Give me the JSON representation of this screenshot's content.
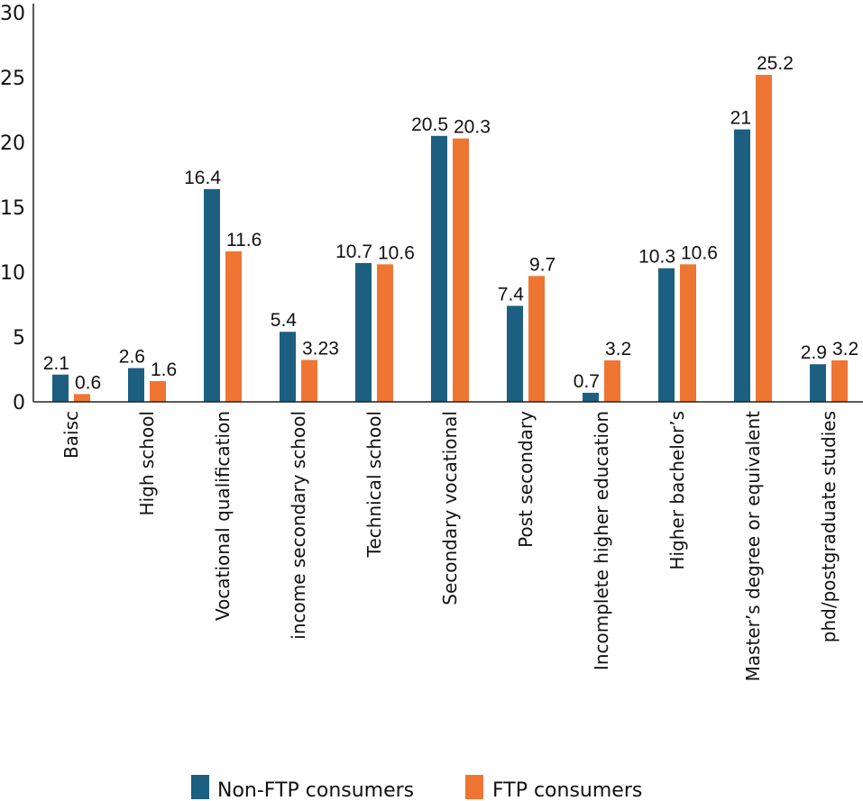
{
  "chart_data": {
    "type": "bar",
    "categories": [
      "Baisc",
      "High school",
      "Vocational qualification",
      "income secondary school",
      "Technical school",
      "Secondary vocational",
      "Post secondary",
      "Incomplete higher education",
      "Higher bachelor’s",
      "Master’s degree or equivalent",
      "phd/postgraduate studies"
    ],
    "series": [
      {
        "name": "Non-FTP consumers",
        "color": "#1c5f80",
        "values": [
          2.1,
          2.6,
          16.4,
          5.4,
          10.7,
          20.5,
          7.4,
          0.7,
          10.3,
          21,
          2.9
        ]
      },
      {
        "name": "FTP consumers",
        "color": "#ef7533",
        "values": [
          0.6,
          1.6,
          11.6,
          3.23,
          10.6,
          20.3,
          9.7,
          3.2,
          10.6,
          25.2,
          3.2
        ]
      }
    ],
    "title": "",
    "xlabel": "",
    "ylabel": "",
    "ylim": [
      0,
      30
    ],
    "yticks": [
      0,
      5,
      10,
      15,
      20,
      25,
      30
    ],
    "grid": false,
    "legend": "bottom"
  }
}
